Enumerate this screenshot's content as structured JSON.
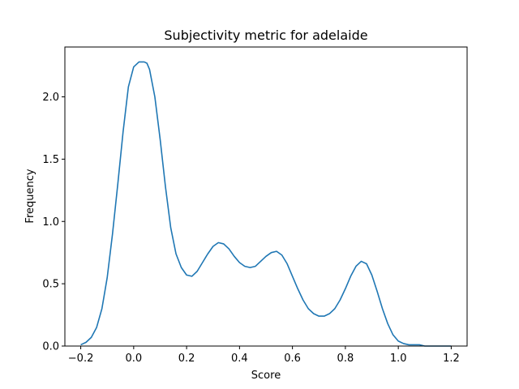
{
  "chart_data": {
    "type": "line",
    "title": "Subjectivity metric for adelaide",
    "xlabel": "Score",
    "ylabel": "Frequency",
    "xlim": [
      -0.26,
      1.26
    ],
    "ylim": [
      0.0,
      2.4
    ],
    "xticks": [
      -0.2,
      0.0,
      0.2,
      0.4,
      0.6,
      0.8,
      1.0,
      1.2
    ],
    "xtick_labels": [
      "−0.2",
      "0.0",
      "0.2",
      "0.4",
      "0.6",
      "0.8",
      "1.0",
      "1.2"
    ],
    "yticks": [
      0.0,
      0.5,
      1.0,
      1.5,
      2.0
    ],
    "ytick_labels": [
      "0.0",
      "0.5",
      "1.0",
      "1.5",
      "2.0"
    ],
    "grid": false,
    "color": "#1f77b4",
    "series": [
      {
        "x": [
          -0.2,
          -0.18,
          -0.16,
          -0.14,
          -0.12,
          -0.1,
          -0.08,
          -0.06,
          -0.04,
          -0.02,
          0.0,
          0.02,
          0.04,
          0.05,
          0.06,
          0.08,
          0.1,
          0.12,
          0.14,
          0.16,
          0.18,
          0.2,
          0.22,
          0.24,
          0.26,
          0.28,
          0.3,
          0.32,
          0.34,
          0.36,
          0.38,
          0.4,
          0.42,
          0.44,
          0.46,
          0.48,
          0.5,
          0.52,
          0.54,
          0.56,
          0.58,
          0.6,
          0.62,
          0.64,
          0.66,
          0.68,
          0.7,
          0.72,
          0.74,
          0.76,
          0.78,
          0.8,
          0.82,
          0.84,
          0.86,
          0.88,
          0.9,
          0.92,
          0.94,
          0.96,
          0.98,
          1.0,
          1.02,
          1.04,
          1.06,
          1.08,
          1.1,
          1.12,
          1.14,
          1.16,
          1.18,
          1.2
        ],
        "y": [
          0.01,
          0.03,
          0.07,
          0.15,
          0.3,
          0.55,
          0.9,
          1.3,
          1.72,
          2.08,
          2.24,
          2.28,
          2.28,
          2.27,
          2.22,
          2.0,
          1.66,
          1.28,
          0.95,
          0.74,
          0.63,
          0.57,
          0.56,
          0.6,
          0.67,
          0.74,
          0.8,
          0.83,
          0.82,
          0.78,
          0.72,
          0.67,
          0.64,
          0.63,
          0.64,
          0.68,
          0.72,
          0.75,
          0.76,
          0.73,
          0.66,
          0.56,
          0.46,
          0.37,
          0.3,
          0.26,
          0.24,
          0.24,
          0.26,
          0.3,
          0.37,
          0.46,
          0.56,
          0.64,
          0.68,
          0.66,
          0.57,
          0.44,
          0.3,
          0.18,
          0.09,
          0.04,
          0.02,
          0.01,
          0.01,
          0.01,
          0.0,
          0.0,
          0.0,
          0.0,
          0.0,
          0.0
        ]
      }
    ]
  }
}
